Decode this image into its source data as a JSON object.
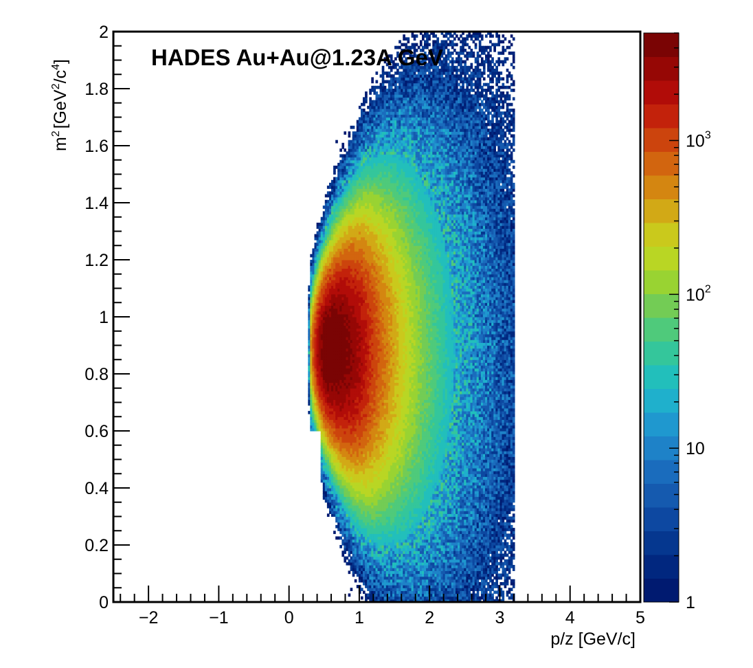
{
  "chart_data": {
    "type": "heatmap",
    "title": "HADES Au+Au@1.23A GeV",
    "xlabel": "p/z [GeV/c]",
    "ylabel_main": "m",
    "ylabel_units": "[GeV",
    "ylabel_sup1": "2",
    "ylabel_sup2": "2",
    "ylabel_sup3": "4",
    "ylabel_mid": "/c",
    "ylabel_close": "]",
    "xlim": [
      -2.5,
      5
    ],
    "ylim": [
      0,
      2
    ],
    "x_ticks": [
      {
        "value": -2,
        "label": "−2"
      },
      {
        "value": -1,
        "label": "−1"
      },
      {
        "value": 0,
        "label": "0"
      },
      {
        "value": 1,
        "label": "1"
      },
      {
        "value": 2,
        "label": "2"
      },
      {
        "value": 3,
        "label": "3"
      },
      {
        "value": 4,
        "label": "4"
      },
      {
        "value": 5,
        "label": "5"
      }
    ],
    "y_ticks": [
      {
        "value": 0,
        "label": "0"
      },
      {
        "value": 0.2,
        "label": "0.2"
      },
      {
        "value": 0.4,
        "label": "0.4"
      },
      {
        "value": 0.6,
        "label": "0.6"
      },
      {
        "value": 0.8,
        "label": "0.8"
      },
      {
        "value": 1.0,
        "label": "1"
      },
      {
        "value": 1.2,
        "label": "1.2"
      },
      {
        "value": 1.4,
        "label": "1.4"
      },
      {
        "value": 1.6,
        "label": "1.6"
      },
      {
        "value": 1.8,
        "label": "1.8"
      },
      {
        "value": 2.0,
        "label": "2"
      }
    ],
    "z_scale": "log",
    "zlim": [
      1,
      5000
    ],
    "colorbar_labels": [
      {
        "value": 1,
        "base": "1",
        "exp": ""
      },
      {
        "value": 10,
        "base": "10",
        "exp": ""
      },
      {
        "value": 100,
        "base": "10",
        "exp": "2"
      },
      {
        "value": 1000,
        "base": "10",
        "exp": "3"
      }
    ],
    "colormap": [
      "#001a70",
      "#01277f",
      "#05378f",
      "#0d48a1",
      "#155aaf",
      "#1a6cbd",
      "#1e82c8",
      "#1f98cf",
      "#1fb0cc",
      "#22bfbb",
      "#34c69b",
      "#4fca7b",
      "#73cc55",
      "#99d332",
      "#b9d624",
      "#cac91c",
      "#d2a916",
      "#d48611",
      "#d2650f",
      "#cc440d",
      "#c3220b",
      "#b10c08",
      "#960705",
      "#7a0404"
    ],
    "peak": {
      "p": 0.6,
      "m2": 0.88,
      "max_count": 5000
    },
    "acceptance_p_range": [
      0.27,
      3.2
    ],
    "grid": false,
    "legend": "colorbar-right"
  }
}
